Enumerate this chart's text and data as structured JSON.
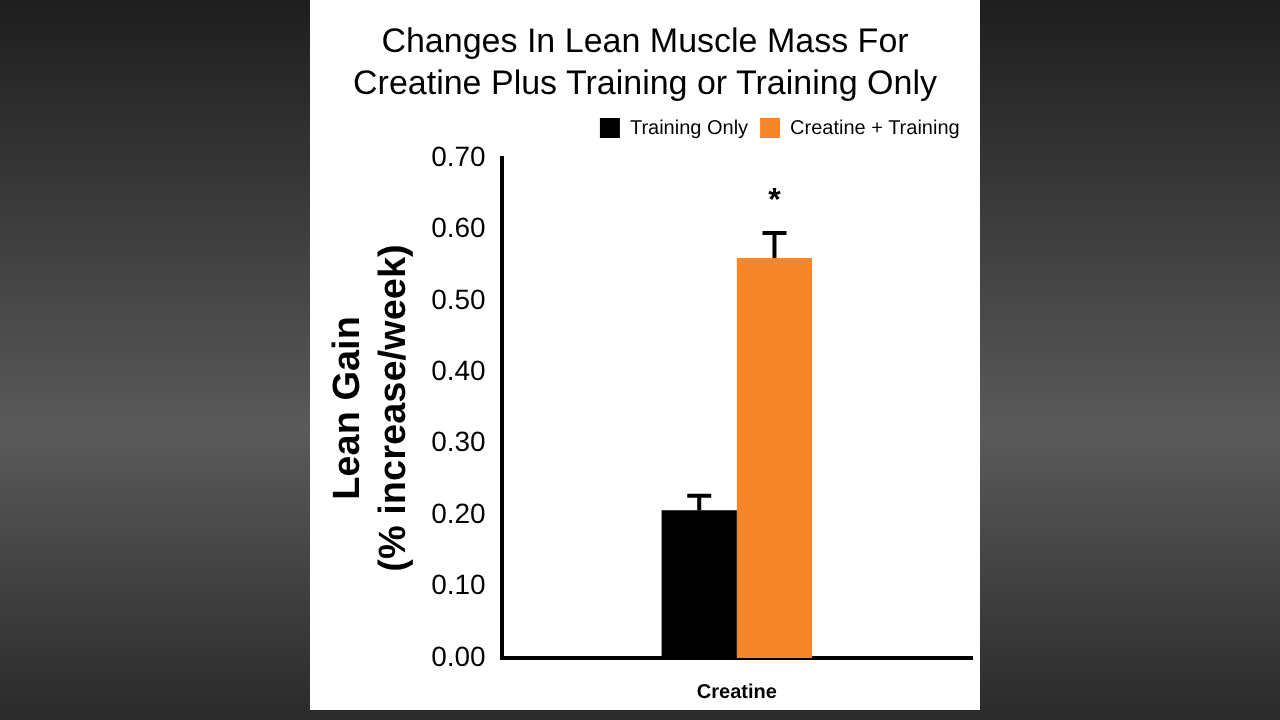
{
  "chart_data": {
    "type": "bar",
    "title": "Changes In Lean Muscle Mass For Creatine Plus Training or Training Only",
    "ylabel": "Lean Gain (% increase/week)",
    "categories": [
      "Creatine"
    ],
    "series": [
      {
        "name": "Training Only",
        "color": "#000000",
        "values": [
          0.207
        ],
        "errors": [
          0.02
        ]
      },
      {
        "name": "Creatine + Training",
        "color": "#f5862a",
        "values": [
          0.56
        ],
        "errors": [
          0.035
        ]
      }
    ],
    "ylim": [
      0,
      0.7
    ],
    "yticks": [
      {
        "value": 0,
        "label": "0.00"
      },
      {
        "value": 0.1,
        "label": "0.10"
      },
      {
        "value": 0.2,
        "label": "0.20"
      },
      {
        "value": 0.3,
        "label": "0.30"
      },
      {
        "value": 0.4,
        "label": "0.40"
      },
      {
        "value": 0.5,
        "label": "0.50"
      },
      {
        "value": 0.6,
        "label": "0.60"
      },
      {
        "value": 0.7,
        "label": "0.70"
      }
    ],
    "annotations": [
      "*"
    ],
    "legend": "top right",
    "grid": false
  }
}
